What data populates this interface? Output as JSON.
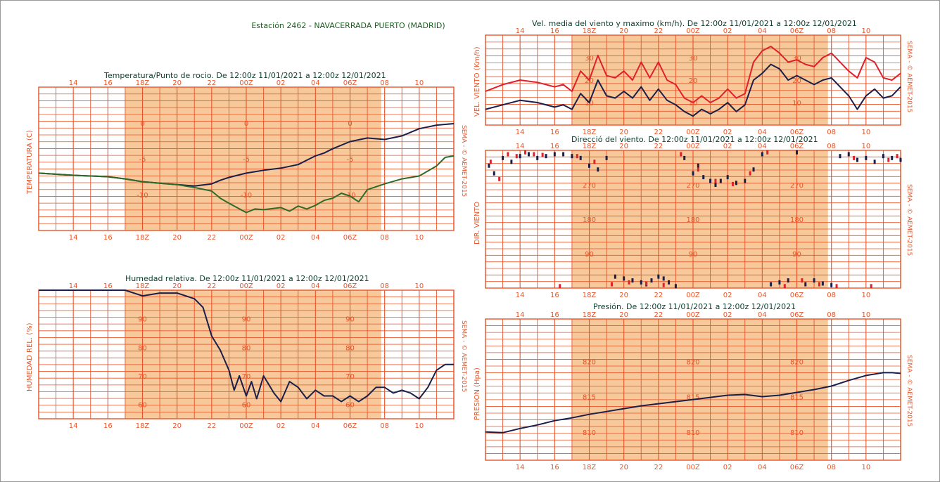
{
  "station_title": "Estación 2462 - NAVACERRADA PUERTO (MADRID)",
  "credit": "SEMA - © AEMET-2015",
  "colors": {
    "grid": "#e8552a",
    "night": "#f7c89a",
    "dark_line": "#1a1f4a",
    "green_line": "#2e6b2a",
    "red_line": "#e0202a"
  },
  "chart_data": [
    {
      "id": "temperature",
      "type": "line",
      "title": "Temperatura/Punto de rocio. De 12:00z 11/01/2021 a 12:00z 12/01/2021",
      "ylabel": "TEMPERATURA (C)",
      "x_ticks": [
        "14",
        "16",
        "18Z",
        "20",
        "22",
        "00Z",
        "02",
        "04",
        "06Z",
        "08",
        "10"
      ],
      "x_range_hours": [
        12,
        36
      ],
      "ylim": [
        -15,
        5
      ],
      "y_tick_labels": [
        0,
        -5,
        -10
      ],
      "night_hours": [
        17,
        31.8
      ],
      "series": [
        {
          "key": "temperature",
          "color": "#1a1f4a",
          "x": [
            12,
            14,
            16,
            17,
            18,
            19,
            20,
            21,
            22,
            22.5,
            23,
            24,
            24.5,
            25,
            26,
            27,
            27.5,
            28,
            28.5,
            29,
            30,
            31,
            32,
            33,
            34,
            35,
            35.5,
            36
          ],
          "y": [
            -7.0,
            -7.3,
            -7.5,
            -7.8,
            -8.2,
            -8.4,
            -8.6,
            -8.8,
            -8.5,
            -8.0,
            -7.6,
            -7.0,
            -6.8,
            -6.6,
            -6.3,
            -5.8,
            -5.2,
            -4.6,
            -4.2,
            -3.6,
            -2.6,
            -2.1,
            -2.3,
            -1.8,
            -0.8,
            -0.3,
            -0.2,
            -0.1
          ]
        },
        {
          "key": "dew_point",
          "color": "#2e6b2a",
          "x": [
            12,
            14,
            16,
            17,
            18,
            19,
            20,
            21,
            22,
            22.5,
            23,
            24,
            24.5,
            25,
            26,
            26.5,
            27,
            27.5,
            28,
            28.5,
            29,
            29.5,
            30,
            30.5,
            31,
            32,
            33,
            34,
            35,
            35.5,
            36
          ],
          "y": [
            -7.0,
            -7.3,
            -7.5,
            -7.8,
            -8.2,
            -8.4,
            -8.6,
            -9.0,
            -9.5,
            -10.5,
            -11.2,
            -12.5,
            -12.0,
            -12.1,
            -11.8,
            -12.3,
            -11.6,
            -12.0,
            -11.5,
            -10.8,
            -10.5,
            -9.8,
            -10.2,
            -11.0,
            -9.3,
            -8.5,
            -7.8,
            -7.4,
            -6.0,
            -4.8,
            -4.6
          ]
        }
      ]
    },
    {
      "id": "humidity",
      "type": "line",
      "title": "Humedad relativa. De 12:00z 11/01/2021 a 12:00z 12/01/2021",
      "ylabel": "HUMEDAD REL. (%)",
      "x_ticks": [
        "14",
        "16",
        "18Z",
        "20",
        "22",
        "00Z",
        "02",
        "04",
        "06Z",
        "08",
        "10"
      ],
      "x_range_hours": [
        12,
        36
      ],
      "ylim": [
        55,
        100
      ],
      "y_tick_labels": [
        90,
        80,
        70,
        60
      ],
      "night_hours": [
        17,
        31.8
      ],
      "series": [
        {
          "key": "relative_humidity",
          "color": "#1a1f4a",
          "x": [
            12,
            16,
            17,
            17.5,
            18,
            19,
            20,
            21,
            21.5,
            22,
            22.5,
            23,
            23.3,
            23.6,
            24,
            24.3,
            24.6,
            25,
            25.3,
            25.6,
            26,
            26.5,
            27,
            27.5,
            28,
            28.5,
            29,
            29.5,
            30,
            30.5,
            31,
            31.5,
            32,
            32.5,
            33,
            33.5,
            34,
            34.5,
            35,
            35.5,
            36
          ],
          "y": [
            100,
            100,
            100,
            99,
            98,
            99,
            99,
            97,
            94,
            84,
            79,
            72,
            65,
            70,
            63,
            68,
            62,
            70,
            67,
            64,
            61,
            68,
            66,
            62,
            65,
            63,
            63,
            61,
            63,
            61,
            63,
            66,
            66,
            64,
            65,
            64,
            62,
            66,
            72,
            74,
            74
          ]
        }
      ]
    },
    {
      "id": "wind_speed",
      "type": "line",
      "title": "Vel. media del viento y maximo (km/h). De 12:00z 11/01/2021 a 12:00z 12/01/2021",
      "ylabel": "VEL. VIENTO (Km/h)",
      "x_ticks": [
        "14",
        "16",
        "18Z",
        "20",
        "22",
        "00Z",
        "02",
        "04",
        "06Z",
        "08",
        "10"
      ],
      "x_range_hours": [
        12,
        36
      ],
      "ylim": [
        0,
        40
      ],
      "y_tick_labels": [
        30,
        20,
        10
      ],
      "night_hours": [
        17,
        31.8
      ],
      "series": [
        {
          "key": "wind_max",
          "color": "#e0202a",
          "x": [
            12,
            13,
            14,
            15,
            16,
            16.5,
            17,
            17.5,
            18,
            18.5,
            19,
            19.5,
            20,
            20.5,
            21,
            21.5,
            22,
            22.5,
            23,
            23.5,
            24,
            24.5,
            25,
            25.5,
            26,
            26.5,
            27,
            27.5,
            28,
            28.5,
            29,
            29.5,
            30,
            30.5,
            31,
            31.5,
            32,
            32.5,
            33,
            33.5,
            34,
            34.5,
            35,
            35.5,
            36
          ],
          "y": [
            15,
            18,
            20,
            19,
            17,
            18,
            15,
            24,
            20,
            31,
            22,
            21,
            24,
            20,
            28,
            21,
            28,
            20,
            18,
            12,
            10,
            13,
            10,
            12,
            16,
            12,
            14,
            28,
            33,
            35,
            32,
            28,
            29,
            27,
            26,
            30,
            32,
            28,
            24,
            21,
            30,
            28,
            21,
            20,
            23
          ]
        },
        {
          "key": "wind_mean",
          "color": "#1a1f4a",
          "x": [
            12,
            13,
            14,
            15,
            16,
            16.5,
            17,
            17.5,
            18,
            18.5,
            19,
            19.5,
            20,
            20.5,
            21,
            21.5,
            22,
            22.5,
            23,
            23.5,
            24,
            24.5,
            25,
            25.5,
            26,
            26.5,
            27,
            27.5,
            28,
            28.5,
            29,
            29.5,
            30,
            30.5,
            31,
            31.5,
            32,
            32.5,
            33,
            33.5,
            34,
            34.5,
            35,
            35.5,
            36
          ],
          "y": [
            7,
            9,
            11,
            10,
            8,
            9,
            7,
            14,
            10,
            20,
            13,
            12,
            15,
            12,
            17,
            11,
            16,
            11,
            9,
            6,
            4,
            7,
            5,
            7,
            10,
            6,
            9,
            20,
            23,
            27,
            25,
            20,
            22,
            20,
            18,
            20,
            21,
            17,
            13,
            7,
            13,
            16,
            12,
            13,
            17
          ]
        }
      ]
    },
    {
      "id": "wind_direction",
      "type": "scatter",
      "title": "Direcció del viento. De 12:00z 11/01/2021 a 12:00z 12/01/2021",
      "ylabel": "DIR. VIENTO",
      "x_ticks": [
        "14",
        "16",
        "18Z",
        "20",
        "22",
        "00Z",
        "02",
        "04",
        "06Z",
        "08",
        "10"
      ],
      "x_range_hours": [
        12,
        36
      ],
      "ylim": [
        0,
        360
      ],
      "y_tick_labels": [
        270,
        180,
        90
      ],
      "night_hours": [
        17,
        31.8
      ],
      "series": [
        {
          "key": "direction_mean",
          "color": "#1a1f4a",
          "x": [
            12.2,
            12.5,
            13,
            13.5,
            14,
            14.5,
            15,
            15.5,
            16,
            16.5,
            17,
            17.5,
            18,
            18.5,
            19,
            19.5,
            20,
            20.5,
            21,
            21.3,
            21.6,
            22,
            22.3,
            22.6,
            23,
            23.5,
            24,
            24.3,
            24.6,
            25,
            25.3,
            25.6,
            26,
            26.5,
            27,
            27.5,
            28,
            28.5,
            29,
            29.5,
            30,
            30.5,
            31,
            31.5,
            32,
            32.5,
            33,
            33.5,
            34,
            34.5,
            35,
            35.5,
            36
          ],
          "y": [
            320,
            300,
            340,
            330,
            345,
            350,
            340,
            345,
            350,
            350,
            345,
            340,
            320,
            310,
            340,
            30,
            25,
            20,
            15,
            10,
            20,
            30,
            25,
            15,
            5,
            340,
            300,
            320,
            290,
            280,
            270,
            280,
            290,
            275,
            280,
            310,
            350,
            10,
            15,
            20,
            355,
            10,
            20,
            12,
            8,
            345,
            350,
            335,
            340,
            330,
            345,
            340,
            335
          ]
        },
        {
          "key": "direction_max",
          "color": "#e0202a",
          "x": [
            12.3,
            12.8,
            13.3,
            13.8,
            14.3,
            14.8,
            15.3,
            16.3,
            17.3,
            18.3,
            19.3,
            20.3,
            21.3,
            22.3,
            23.3,
            24.3,
            25.3,
            26.3,
            27.3,
            28.3,
            29.3,
            30.3,
            31.3,
            32.3,
            33.3,
            34.3,
            35.3,
            35.8
          ],
          "y": [
            330,
            285,
            350,
            345,
            355,
            350,
            348,
            5,
            345,
            330,
            10,
            15,
            12,
            8,
            350,
            310,
            280,
            272,
            300,
            355,
            5,
            20,
            10,
            5,
            340,
            5,
            335,
            345
          ]
        }
      ]
    },
    {
      "id": "pressure",
      "type": "line",
      "title": "Presión. De 12:00z 11/01/2021 a 12:00z 12/01/2021",
      "ylabel": "PRESION (Hpa)",
      "x_ticks": [
        "14",
        "16",
        "18Z",
        "20",
        "22",
        "00Z",
        "02",
        "04",
        "06Z",
        "08",
        "10"
      ],
      "x_range_hours": [
        12,
        36
      ],
      "ylim": [
        806,
        826
      ],
      "y_tick_labels": [
        820,
        815,
        810
      ],
      "night_hours": [
        17,
        31.8
      ],
      "series": [
        {
          "key": "pressure",
          "color": "#1a1f4a",
          "x": [
            12,
            13,
            14,
            15,
            16,
            17,
            18,
            19,
            20,
            21,
            22,
            23,
            24,
            25,
            26,
            27,
            28,
            29,
            29.5,
            30,
            31,
            32,
            33,
            34,
            35,
            35.5,
            36
          ],
          "y": [
            810.0,
            809.9,
            810.5,
            811.0,
            811.6,
            812.0,
            812.5,
            812.9,
            813.3,
            813.7,
            814.0,
            814.3,
            814.6,
            814.9,
            815.2,
            815.3,
            815.0,
            815.2,
            815.4,
            815.6,
            816.0,
            816.5,
            817.3,
            818.0,
            818.4,
            818.4,
            818.3
          ]
        }
      ]
    }
  ]
}
